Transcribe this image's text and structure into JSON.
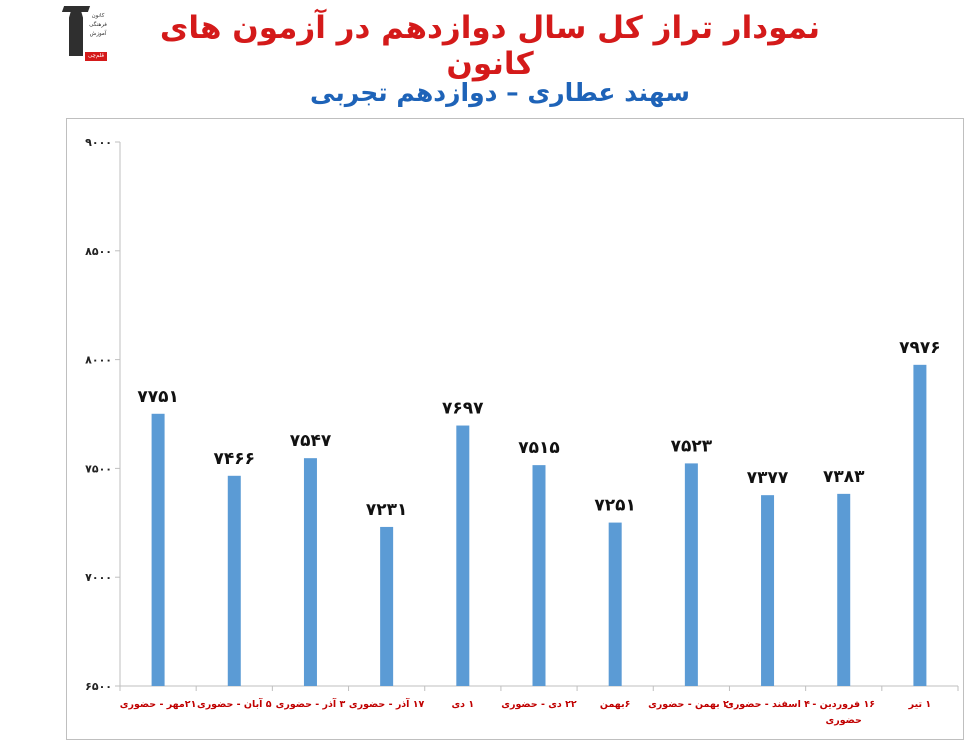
{
  "header": {
    "title_part1": "نمودار تراز کل سال دوازدهم در آزمون های کانون",
    "subtitle": "سهند عطاری – دوازدهم تجربی"
  },
  "logo": {
    "line1": "کانون",
    "line2": "فرهنگی",
    "line3": "آموزش",
    "badge": "قلم‌چی"
  },
  "colors": {
    "bar": "#5b9bd5",
    "title": "#d41a1a",
    "subtitle": "#1e63b8",
    "category_label": "#c00000",
    "axis": "#bfbfbf"
  },
  "chart_data": {
    "type": "bar",
    "title": "",
    "xlabel": "",
    "ylabel": "",
    "ylim": [
      6500,
      9000
    ],
    "yticks": [
      6500,
      7000,
      7500,
      8000,
      8500,
      9000
    ],
    "ytick_labels": [
      "۶۵۰۰",
      "۷۰۰۰",
      "۷۵۰۰",
      "۸۰۰۰",
      "۸۵۰۰",
      "۹۰۰۰"
    ],
    "grid": false,
    "categories": [
      "۲۱مهر - حضوری",
      "۵ آبان - حضوری",
      "۳ آذر - حضوری",
      "۱۷ آذر - حضوری",
      "۱ دی",
      "۲۲ دی - حضوری",
      "۶بهمن",
      "۲۰ بهمن - حضوری",
      "۴ اسفند - حضوری",
      "۱۶ فروردین - حضوری",
      "۱ تیر"
    ],
    "values": [
      7751,
      7466,
      7547,
      7231,
      7697,
      7515,
      7251,
      7523,
      7377,
      7383,
      7976
    ],
    "value_labels": [
      "۷۷۵۱",
      "۷۴۶۶",
      "۷۵۴۷",
      "۷۲۳۱",
      "۷۶۹۷",
      "۷۵۱۵",
      "۷۲۵۱",
      "۷۵۲۳",
      "۷۳۷۷",
      "۷۳۸۳",
      "۷۹۷۶"
    ]
  }
}
